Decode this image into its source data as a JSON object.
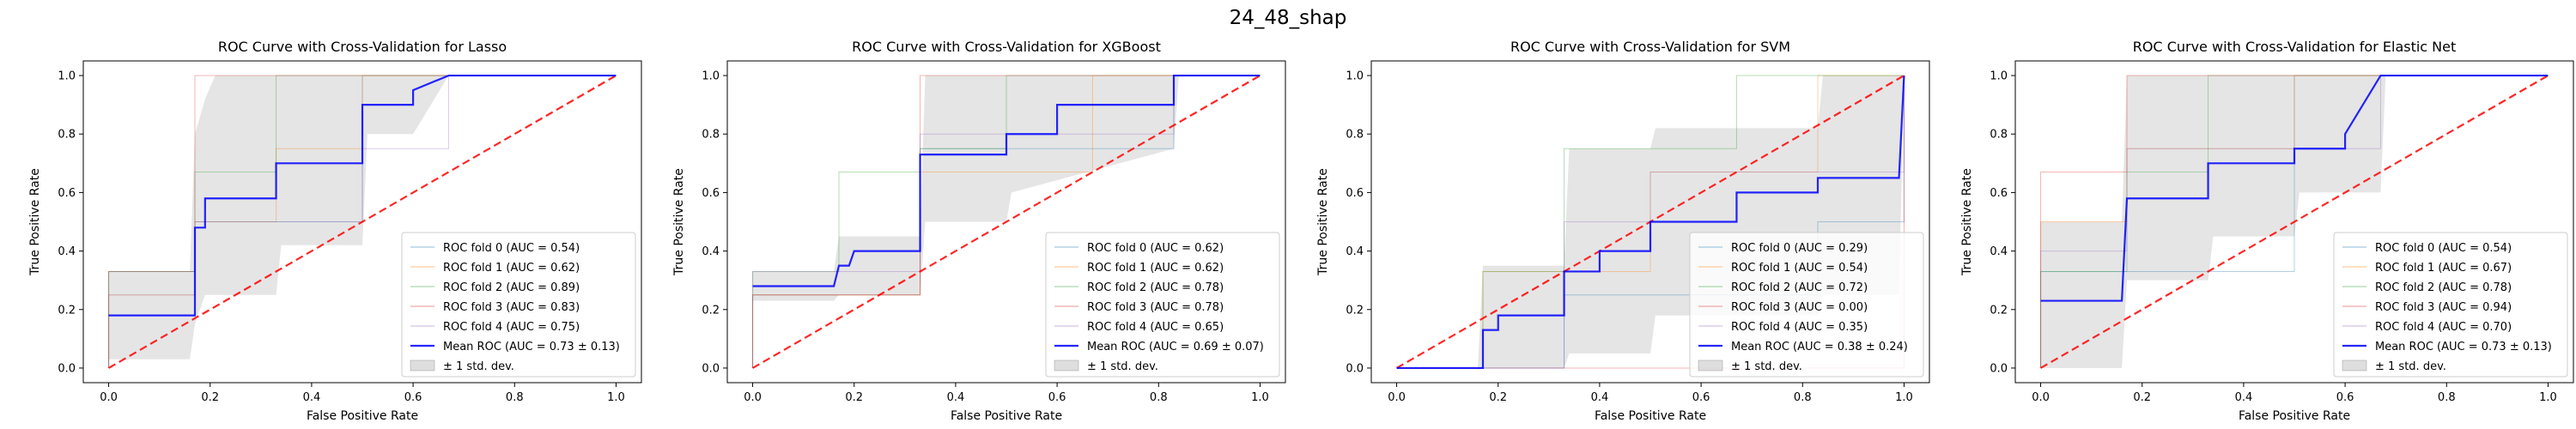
{
  "figure": {
    "suptitle": "24_48_shap"
  },
  "colors": {
    "fold_colors": [
      "#1f77b4",
      "#ff7f0e",
      "#2ca02c",
      "#d62728",
      "#9467bd"
    ],
    "mean": "#0000ff",
    "chance": "#ff0000",
    "band": "#bdbdbd"
  },
  "chart_data": [
    {
      "type": "line",
      "title": "ROC Curve with Cross-Validation for Lasso",
      "xlabel": "False Positive Rate",
      "ylabel": "True Positive Rate",
      "xlim": [
        -0.05,
        1.05
      ],
      "ylim": [
        -0.05,
        1.05
      ],
      "xticks": [
        "0.0",
        "0.2",
        "0.4",
        "0.6",
        "0.8",
        "1.0"
      ],
      "yticks": [
        "0.0",
        "0.2",
        "0.4",
        "0.6",
        "0.8",
        "1.0"
      ],
      "legend_position": "lower right",
      "series": [
        {
          "name": "ROC fold 0 (AUC = 0.54)",
          "x": [
            0,
            0,
            0.17,
            0.17,
            0.5,
            0.5,
            1
          ],
          "y": [
            0,
            0.33,
            0.33,
            0.5,
            0.5,
            1,
            1
          ]
        },
        {
          "name": "ROC fold 1 (AUC = 0.62)",
          "x": [
            0,
            0,
            0.17,
            0.17,
            0.33,
            0.33,
            0.5,
            0.5,
            1
          ],
          "y": [
            0,
            0.25,
            0.25,
            0.5,
            0.5,
            0.75,
            0.75,
            1,
            1
          ]
        },
        {
          "name": "ROC fold 2 (AUC = 0.89)",
          "x": [
            0,
            0,
            0.17,
            0.17,
            0.33,
            0.33,
            1
          ],
          "y": [
            0,
            0.33,
            0.33,
            0.67,
            0.67,
            1,
            1
          ]
        },
        {
          "name": "ROC fold 3 (AUC = 0.83)",
          "x": [
            0,
            0,
            0.17,
            0.17,
            0.67,
            0.67,
            1
          ],
          "y": [
            0,
            0.33,
            0.33,
            1,
            1,
            1,
            1
          ]
        },
        {
          "name": "ROC fold 4 (AUC = 0.75)",
          "x": [
            0,
            0,
            0.17,
            0.17,
            0.5,
            0.5,
            0.67,
            0.67,
            1
          ],
          "y": [
            0,
            0.25,
            0.25,
            0.5,
            0.5,
            0.75,
            0.75,
            1,
            1
          ]
        }
      ],
      "mean": {
        "name": "Mean ROC (AUC = 0.73 ± 0.13)",
        "x": [
          0,
          0.16,
          0.17,
          0.17,
          0.19,
          0.19,
          0.21,
          0.33,
          0.33,
          0.5,
          0.5,
          0.6,
          0.6,
          0.67,
          1
        ],
        "y": [
          0.18,
          0.18,
          0.18,
          0.48,
          0.48,
          0.58,
          0.58,
          0.58,
          0.7,
          0.7,
          0.9,
          0.9,
          0.95,
          1,
          1
        ]
      },
      "band": {
        "name": "± 1 std. dev.",
        "x": [
          0,
          0.16,
          0.17,
          0.19,
          0.21,
          0.33,
          0.34,
          0.5,
          0.51,
          0.6,
          0.67,
          1
        ],
        "upper": [
          0.33,
          0.33,
          0.8,
          0.92,
          1,
          1,
          1,
          1,
          1,
          1,
          1,
          1
        ],
        "lower": [
          0.03,
          0.03,
          0.15,
          0.25,
          0.25,
          0.25,
          0.42,
          0.42,
          0.8,
          0.8,
          1,
          1
        ]
      },
      "chance": {
        "x": [
          0,
          1
        ],
        "y": [
          0,
          1
        ]
      }
    },
    {
      "type": "line",
      "title": "ROC Curve with Cross-Validation for XGBoost",
      "xlabel": "False Positive Rate",
      "ylabel": "True Positive Rate",
      "xlim": [
        -0.05,
        1.05
      ],
      "ylim": [
        -0.05,
        1.05
      ],
      "xticks": [
        "0.0",
        "0.2",
        "0.4",
        "0.6",
        "0.8",
        "1.0"
      ],
      "yticks": [
        "0.0",
        "0.2",
        "0.4",
        "0.6",
        "0.8",
        "1.0"
      ],
      "legend_position": "lower right",
      "series": [
        {
          "name": "ROC fold 0 (AUC = 0.62)",
          "x": [
            0,
            0,
            0.33,
            0.33,
            0.83,
            0.83,
            1
          ],
          "y": [
            0,
            0.25,
            0.25,
            0.75,
            0.75,
            1,
            1
          ]
        },
        {
          "name": "ROC fold 1 (AUC = 0.62)",
          "x": [
            0,
            0,
            0.33,
            0.33,
            0.67,
            0.67,
            1
          ],
          "y": [
            0,
            0.25,
            0.25,
            0.67,
            0.67,
            1,
            1
          ]
        },
        {
          "name": "ROC fold 2 (AUC = 0.78)",
          "x": [
            0,
            0,
            0.17,
            0.17,
            0.33,
            0.33,
            0.5,
            0.5,
            1
          ],
          "y": [
            0,
            0.33,
            0.33,
            0.67,
            0.67,
            0.75,
            0.75,
            1,
            1
          ]
        },
        {
          "name": "ROC fold 3 (AUC = 0.78)",
          "x": [
            0,
            0,
            0.33,
            0.33,
            0.33,
            1
          ],
          "y": [
            0,
            0.25,
            0.25,
            1,
            1,
            1
          ]
        },
        {
          "name": "ROC fold 4 (AUC = 0.65)",
          "x": [
            0,
            0,
            0.33,
            0.33,
            0.83,
            0.83,
            1
          ],
          "y": [
            0,
            0.33,
            0.33,
            0.8,
            0.8,
            1,
            1
          ]
        }
      ],
      "mean": {
        "name": "Mean ROC (AUC = 0.69 ± 0.07)",
        "x": [
          0,
          0.16,
          0.17,
          0.19,
          0.2,
          0.33,
          0.33,
          0.5,
          0.5,
          0.6,
          0.6,
          0.83,
          0.83,
          1
        ],
        "y": [
          0.28,
          0.28,
          0.35,
          0.35,
          0.4,
          0.4,
          0.73,
          0.73,
          0.8,
          0.8,
          0.9,
          0.9,
          1,
          1
        ]
      },
      "band": {
        "name": "± 1 std. dev.",
        "x": [
          0,
          0.16,
          0.17,
          0.33,
          0.34,
          0.5,
          0.51,
          0.83,
          0.84,
          1
        ],
        "upper": [
          0.33,
          0.33,
          0.45,
          0.45,
          1,
          1,
          1,
          1,
          1,
          1
        ],
        "lower": [
          0.23,
          0.23,
          0.25,
          0.25,
          0.5,
          0.5,
          0.6,
          0.75,
          1,
          1
        ]
      },
      "chance": {
        "x": [
          0,
          1
        ],
        "y": [
          0,
          1
        ]
      }
    },
    {
      "type": "line",
      "title": "ROC Curve with Cross-Validation for SVM",
      "xlabel": "False Positive Rate",
      "ylabel": "True Positive Rate",
      "xlim": [
        -0.05,
        1.05
      ],
      "ylim": [
        -0.05,
        1.05
      ],
      "xticks": [
        "0.0",
        "0.2",
        "0.4",
        "0.6",
        "0.8",
        "1.0"
      ],
      "yticks": [
        "0.0",
        "0.2",
        "0.4",
        "0.6",
        "0.8",
        "1.0"
      ],
      "legend_position": "lower right",
      "series": [
        {
          "name": "ROC fold 0 (AUC = 0.29)",
          "x": [
            0,
            0.33,
            0.33,
            0.83,
            0.83,
            1,
            1
          ],
          "y": [
            0,
            0,
            0.25,
            0.25,
            0.5,
            0.5,
            1
          ]
        },
        {
          "name": "ROC fold 1 (AUC = 0.54)",
          "x": [
            0,
            0.17,
            0.17,
            0.5,
            0.5,
            0.83,
            0.83,
            1
          ],
          "y": [
            0,
            0,
            0.33,
            0.33,
            0.67,
            0.67,
            1,
            1
          ]
        },
        {
          "name": "ROC fold 2 (AUC = 0.72)",
          "x": [
            0,
            0.17,
            0.17,
            0.33,
            0.33,
            0.67,
            0.67,
            1
          ],
          "y": [
            0,
            0,
            0.33,
            0.33,
            0.75,
            0.75,
            1,
            1
          ]
        },
        {
          "name": "ROC fold 3 (AUC = 0.00)",
          "x": [
            0,
            1,
            1
          ],
          "y": [
            0,
            0,
            1
          ]
        },
        {
          "name": "ROC fold 4 (AUC = 0.35)",
          "x": [
            0,
            0.33,
            0.33,
            0.5,
            0.5,
            1,
            1
          ],
          "y": [
            0,
            0,
            0.5,
            0.5,
            0.67,
            0.67,
            1
          ]
        }
      ],
      "mean": {
        "name": "Mean ROC (AUC = 0.38 ± 0.24)",
        "x": [
          0,
          0.16,
          0.17,
          0.17,
          0.2,
          0.2,
          0.33,
          0.33,
          0.4,
          0.4,
          0.5,
          0.5,
          0.67,
          0.67,
          0.83,
          0.83,
          0.99,
          1
        ],
        "y": [
          0,
          0,
          0,
          0.13,
          0.13,
          0.18,
          0.18,
          0.33,
          0.33,
          0.4,
          0.4,
          0.5,
          0.5,
          0.6,
          0.6,
          0.65,
          0.65,
          1
        ]
      },
      "band": {
        "name": "± 1 std. dev.",
        "x": [
          0,
          0.16,
          0.17,
          0.33,
          0.34,
          0.5,
          0.51,
          0.83,
          0.84,
          0.99,
          1
        ],
        "upper": [
          0,
          0,
          0.35,
          0.35,
          0.75,
          0.75,
          0.82,
          0.82,
          1,
          1,
          1
        ],
        "lower": [
          0,
          0,
          0,
          0,
          0.05,
          0.05,
          0.18,
          0.18,
          0.25,
          0.25,
          1
        ]
      },
      "chance": {
        "x": [
          0,
          1
        ],
        "y": [
          0,
          1
        ]
      }
    },
    {
      "type": "line",
      "title": "ROC Curve with Cross-Validation for Elastic Net",
      "xlabel": "False Positive Rate",
      "ylabel": "True Positive Rate",
      "xlim": [
        -0.05,
        1.05
      ],
      "ylim": [
        -0.05,
        1.05
      ],
      "xticks": [
        "0.0",
        "0.2",
        "0.4",
        "0.6",
        "0.8",
        "1.0"
      ],
      "yticks": [
        "0.0",
        "0.2",
        "0.4",
        "0.6",
        "0.8",
        "1.0"
      ],
      "legend_position": "lower right",
      "series": [
        {
          "name": "ROC fold 0 (AUC = 0.54)",
          "x": [
            0,
            0,
            0.5,
            0.5,
            1
          ],
          "y": [
            0,
            0.33,
            0.33,
            1,
            1
          ]
        },
        {
          "name": "ROC fold 1 (AUC = 0.67)",
          "x": [
            0,
            0,
            0.17,
            0.17,
            0.5,
            0.5,
            1
          ],
          "y": [
            0,
            0.5,
            0.5,
            0.75,
            0.75,
            1,
            1
          ]
        },
        {
          "name": "ROC fold 2 (AUC = 0.78)",
          "x": [
            0,
            0,
            0.17,
            0.17,
            0.33,
            0.33,
            1
          ],
          "y": [
            0,
            0.33,
            0.33,
            0.67,
            0.67,
            1,
            1
          ]
        },
        {
          "name": "ROC fold 3 (AUC = 0.94)",
          "x": [
            0,
            0,
            0.17,
            0.17,
            1
          ],
          "y": [
            0,
            0.67,
            0.67,
            1,
            1
          ]
        },
        {
          "name": "ROC fold 4 (AUC = 0.70)",
          "x": [
            0,
            0,
            0.17,
            0.17,
            0.67,
            0.67,
            1
          ],
          "y": [
            0,
            0.4,
            0.4,
            0.75,
            0.75,
            1,
            1
          ]
        }
      ],
      "mean": {
        "name": "Mean ROC (AUC = 0.73 ± 0.13)",
        "x": [
          0,
          0.16,
          0.17,
          0.33,
          0.33,
          0.5,
          0.5,
          0.6,
          0.6,
          0.67,
          1
        ],
        "y": [
          0.23,
          0.23,
          0.58,
          0.58,
          0.7,
          0.7,
          0.75,
          0.75,
          0.8,
          1,
          1
        ]
      },
      "band": {
        "name": "± 1 std. dev.",
        "x": [
          0,
          0.16,
          0.17,
          0.33,
          0.34,
          0.5,
          0.51,
          0.67,
          0.68,
          1
        ],
        "upper": [
          0.5,
          0.5,
          1,
          1,
          1,
          1,
          1,
          1,
          1,
          1
        ],
        "lower": [
          0,
          0,
          0.3,
          0.3,
          0.45,
          0.45,
          0.6,
          0.6,
          1,
          1
        ]
      },
      "chance": {
        "x": [
          0,
          1
        ],
        "y": [
          0,
          1
        ]
      }
    }
  ]
}
